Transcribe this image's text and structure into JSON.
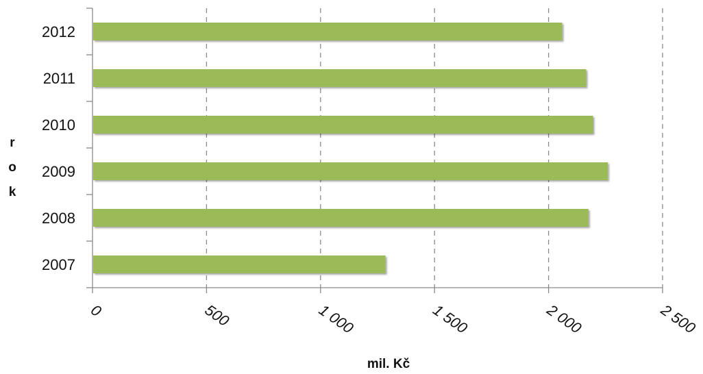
{
  "chart_data": {
    "type": "bar",
    "orientation": "horizontal",
    "categories": [
      "2012",
      "2011",
      "2010",
      "2009",
      "2008",
      "2007"
    ],
    "values": [
      2060,
      2165,
      2195,
      2260,
      2175,
      1285
    ],
    "xlabel": "mil. Kč",
    "ylabel": "rok",
    "xlim": [
      0,
      2500
    ],
    "xticks": [
      0,
      500,
      1000,
      1500,
      2000,
      2500
    ],
    "xtick_labels": [
      "0",
      "500",
      "1 000",
      "1 500",
      "2 000",
      "2 500"
    ],
    "grid": "vertical dashed",
    "bar_color": "#9bbb59"
  }
}
